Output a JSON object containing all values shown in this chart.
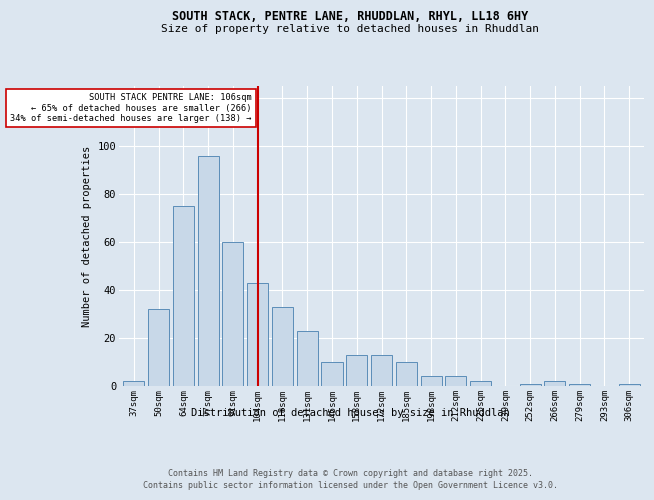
{
  "title1": "SOUTH STACK, PENTRE LANE, RHUDDLAN, RHYL, LL18 6HY",
  "title2": "Size of property relative to detached houses in Rhuddlan",
  "xlabel": "Distribution of detached houses by size in Rhuddlan",
  "ylabel": "Number of detached properties",
  "categories": [
    "37sqm",
    "50sqm",
    "64sqm",
    "77sqm",
    "91sqm",
    "104sqm",
    "118sqm",
    "131sqm",
    "145sqm",
    "158sqm",
    "172sqm",
    "185sqm",
    "198sqm",
    "212sqm",
    "225sqm",
    "239sqm",
    "252sqm",
    "266sqm",
    "279sqm",
    "293sqm",
    "306sqm"
  ],
  "values": [
    2,
    32,
    75,
    96,
    60,
    43,
    33,
    23,
    10,
    13,
    13,
    10,
    4,
    4,
    2,
    0,
    1,
    2,
    1,
    0,
    1
  ],
  "bar_color": "#c8d8e8",
  "bar_edge_color": "#5b8db8",
  "annotation_line_color": "#cc0000",
  "annotation_text_line1": "SOUTH STACK PENTRE LANE: 106sqm",
  "annotation_text_line2": "← 65% of detached houses are smaller (266)",
  "annotation_text_line3": "34% of semi-detached houses are larger (138) →",
  "annotation_box_facecolor": "#ffffff",
  "annotation_box_edgecolor": "#cc0000",
  "ylim": [
    0,
    125
  ],
  "yticks": [
    0,
    20,
    40,
    60,
    80,
    100,
    120
  ],
  "background_color": "#dce6f0",
  "footer_line1": "Contains HM Land Registry data © Crown copyright and database right 2025.",
  "footer_line2": "Contains public sector information licensed under the Open Government Licence v3.0."
}
